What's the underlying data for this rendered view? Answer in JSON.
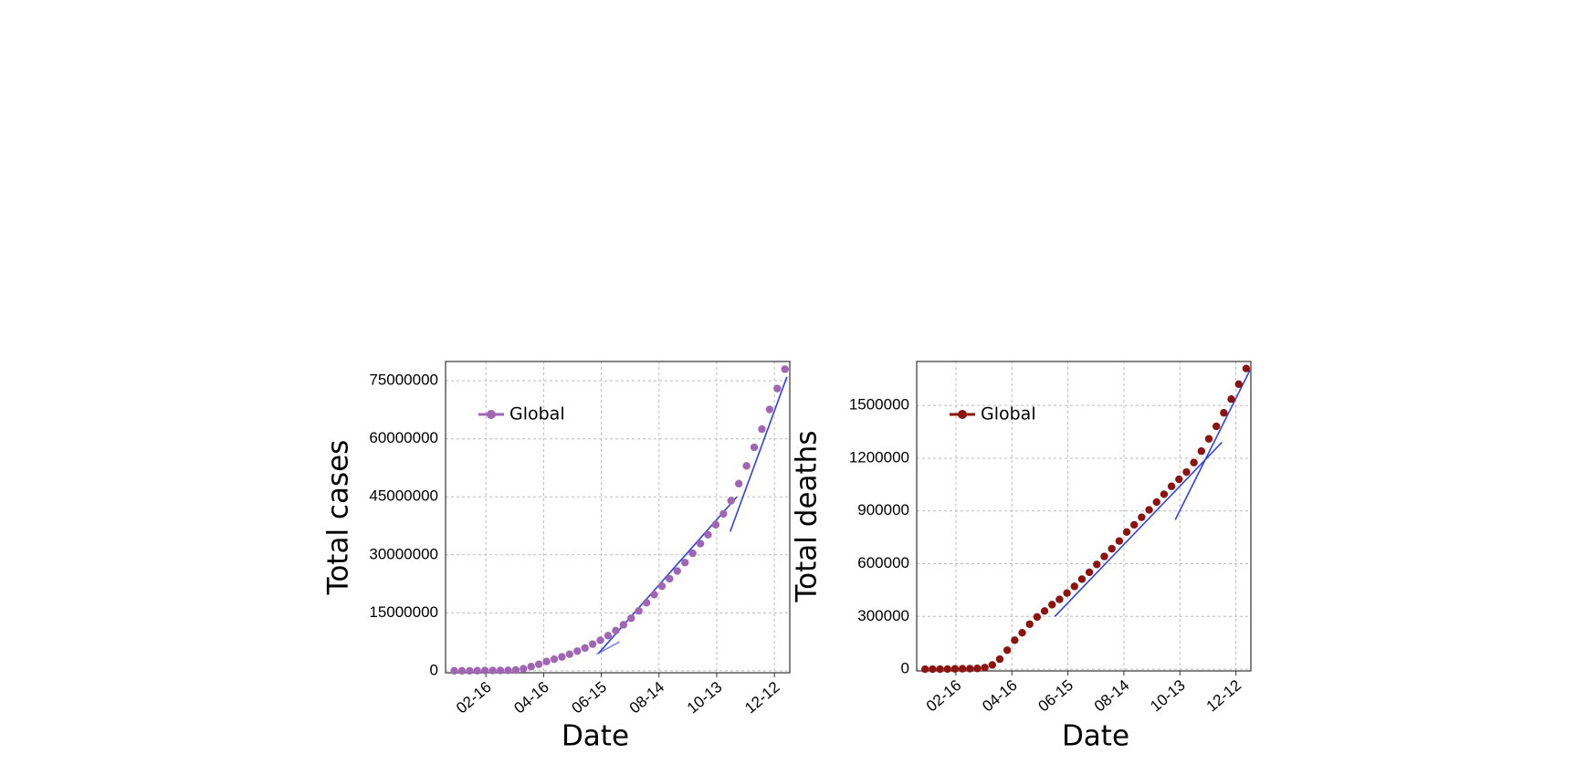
{
  "chart_data": [
    {
      "type": "scatter",
      "x_label": "Date",
      "y_label": "Total cases",
      "x": [
        "01-14",
        "01-22",
        "01-30",
        "02-07",
        "02-15",
        "02-23",
        "03-02",
        "03-10",
        "03-18",
        "03-26",
        "04-03",
        "04-11",
        "04-19",
        "04-27",
        "05-05",
        "05-13",
        "05-21",
        "05-29",
        "06-06",
        "06-14",
        "06-22",
        "06-30",
        "07-08",
        "07-16",
        "07-24",
        "08-01",
        "08-09",
        "08-17",
        "08-25",
        "09-02",
        "09-10",
        "09-18",
        "09-26",
        "10-04",
        "10-12",
        "10-20",
        "10-28",
        "11-05",
        "11-13",
        "11-21",
        "11-29",
        "12-07",
        "12-15",
        "12-23"
      ],
      "series": [
        {
          "name": "Global",
          "color": "#a066b4",
          "values": [
            0,
            600,
            8000,
            34000,
            69000,
            79000,
            90000,
            120000,
            210000,
            530000,
            1100000,
            1700000,
            2400000,
            3000000,
            3600000,
            4300000,
            5100000,
            5900000,
            6900000,
            7900000,
            9100000,
            10400000,
            11900000,
            13600000,
            15500000,
            17600000,
            19700000,
            21900000,
            23800000,
            25800000,
            28000000,
            30400000,
            32900000,
            35200000,
            37800000,
            40600000,
            44000000,
            48400000,
            53000000,
            57800000,
            62500000,
            67600000,
            73000000,
            78000000
          ]
        }
      ],
      "trend_lines": [
        {
          "color": "#7b86f0",
          "x": [
            "06-10",
            "07-04"
          ],
          "values": [
            4300000,
            7500000
          ]
        },
        {
          "color": "#2e43e0",
          "x": [
            "06-12",
            "11-03"
          ],
          "values": [
            4500000,
            45000000
          ]
        },
        {
          "color": "#2e43e0",
          "x": [
            "10-27",
            "12-25"
          ],
          "values": [
            36000000,
            76000000
          ]
        }
      ],
      "xlim": [
        "01-05",
        "12-28"
      ],
      "xticks": [
        "02-16",
        "04-16",
        "06-15",
        "08-14",
        "10-13",
        "12-12"
      ],
      "ylim": [
        -500000,
        80000000
      ],
      "yticks": [
        0,
        15000000,
        30000000,
        45000000,
        60000000,
        75000000
      ],
      "grid": true,
      "legend": "upper left"
    },
    {
      "type": "scatter",
      "x_label": "Date",
      "y_label": "Total deaths",
      "x": [
        "01-14",
        "01-22",
        "01-30",
        "02-07",
        "02-15",
        "02-23",
        "03-02",
        "03-10",
        "03-18",
        "03-26",
        "04-03",
        "04-11",
        "04-19",
        "04-27",
        "05-05",
        "05-13",
        "05-21",
        "05-29",
        "06-06",
        "06-14",
        "06-22",
        "06-30",
        "07-08",
        "07-16",
        "07-24",
        "08-01",
        "08-09",
        "08-17",
        "08-25",
        "09-02",
        "09-10",
        "09-18",
        "09-26",
        "10-04",
        "10-12",
        "10-20",
        "10-28",
        "11-05",
        "11-13",
        "11-21",
        "11-29",
        "12-07",
        "12-15",
        "12-23"
      ],
      "series": [
        {
          "name": "Global",
          "color": "#8b1410",
          "values": [
            0,
            17,
            213,
            720,
            1670,
            2460,
            3100,
            4300,
            9200,
            24000,
            57000,
            108000,
            165000,
            207000,
            256000,
            297000,
            331000,
            367000,
            397000,
            433000,
            471000,
            512000,
            551000,
            596000,
            641000,
            685000,
            729000,
            780000,
            821000,
            864000,
            906000,
            950000,
            995000,
            1040000,
            1080000,
            1121000,
            1175000,
            1240000,
            1310000,
            1381000,
            1458000,
            1536000,
            1621000,
            1710000
          ]
        }
      ],
      "trend_lines": [
        {
          "color": "#2e43e0",
          "x": [
            "06-01",
            "11-27"
          ],
          "values": [
            300000,
            1290000
          ]
        },
        {
          "color": "#2e43e0",
          "x": [
            "10-08",
            "12-27"
          ],
          "values": [
            850000,
            1700000
          ]
        }
      ],
      "xlim": [
        "01-05",
        "12-28"
      ],
      "xticks": [
        "02-16",
        "04-16",
        "06-15",
        "08-14",
        "10-13",
        "12-12"
      ],
      "ylim": [
        -10000,
        1750000
      ],
      "yticks": [
        0,
        300000,
        600000,
        900000,
        1200000,
        1500000
      ],
      "grid": true,
      "legend": "upper left"
    }
  ]
}
